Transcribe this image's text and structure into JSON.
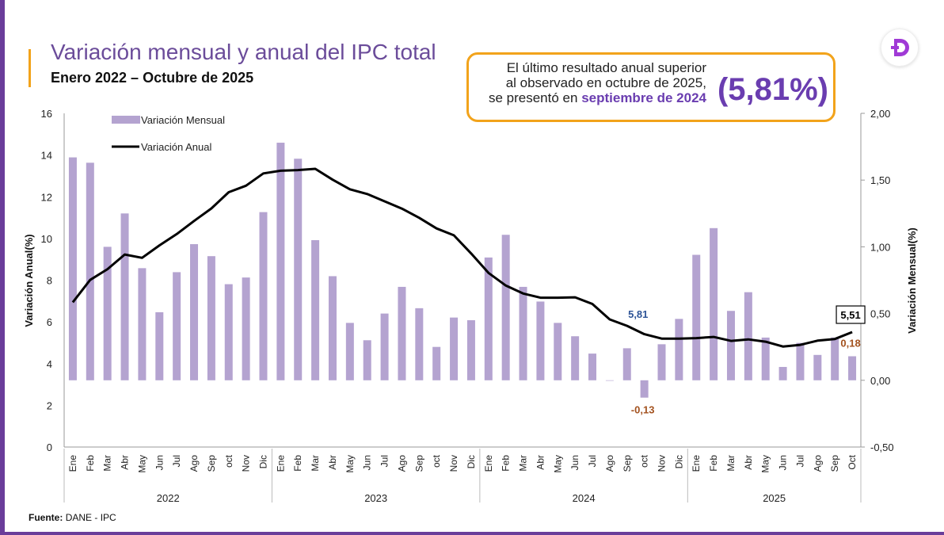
{
  "header": {
    "title": "Variación mensual y anual del IPC total",
    "subtitle": "Enero 2022 – Octubre de 2025"
  },
  "callout": {
    "text_line1": "El último resultado anual superior",
    "text_line2": "al observado en octubre de 2025,",
    "text_line3": "se presentó en",
    "text_em": "septiembre de 2024",
    "big_value": "(5,81%)"
  },
  "source": {
    "label": "Fuente:",
    "value": "DANE - IPC"
  },
  "colors": {
    "bars": "#b4a3d0",
    "line": "#000000",
    "accent": "#f2a31b",
    "brand": "#6a3db0",
    "label_blue": "#2f5597",
    "label_brown": "#a3521f"
  },
  "chart_data": {
    "type": "bar+line",
    "categories": [
      "Ene",
      "Feb",
      "Mar",
      "Abr",
      "May",
      "Jun",
      "Jul",
      "Ago",
      "Sep",
      "oct",
      "Nov",
      "Dic",
      "Ene",
      "Feb",
      "Mar",
      "Abr",
      "May",
      "Jun",
      "Jul",
      "Ago",
      "Sep",
      "oct",
      "Nov",
      "Dic",
      "Ene",
      "Feb",
      "Mar",
      "Abr",
      "May",
      "Jun",
      "Jul",
      "Ago",
      "Sep",
      "oct",
      "Nov",
      "Dic",
      "Ene",
      "Feb",
      "Mar",
      "Abr",
      "May",
      "Jun",
      "Jul",
      "Ago",
      "Sep",
      "Oct"
    ],
    "years": [
      {
        "label": "2022",
        "start": 0,
        "end": 11
      },
      {
        "label": "2023",
        "start": 12,
        "end": 23
      },
      {
        "label": "2024",
        "start": 24,
        "end": 35
      },
      {
        "label": "2025",
        "start": 36,
        "end": 45
      }
    ],
    "series": [
      {
        "name": "Variación Mensual",
        "axis": "right",
        "type": "bar",
        "values": [
          1.67,
          1.63,
          1.0,
          1.25,
          0.84,
          0.51,
          0.81,
          1.02,
          0.93,
          0.72,
          0.77,
          1.26,
          1.78,
          1.66,
          1.05,
          0.78,
          0.43,
          0.3,
          0.5,
          0.7,
          0.54,
          0.25,
          0.47,
          0.45,
          0.92,
          1.09,
          0.7,
          0.59,
          0.43,
          0.33,
          0.2,
          0.0,
          0.24,
          -0.13,
          0.27,
          0.46,
          0.94,
          1.14,
          0.52,
          0.66,
          0.32,
          0.1,
          0.28,
          0.19,
          0.32,
          0.18
        ]
      },
      {
        "name": "Variación Anual",
        "axis": "left",
        "type": "line",
        "values": [
          6.94,
          8.01,
          8.53,
          9.23,
          9.07,
          9.67,
          10.21,
          10.84,
          11.44,
          12.22,
          12.53,
          13.12,
          13.25,
          13.28,
          13.34,
          12.82,
          12.36,
          12.13,
          11.78,
          11.43,
          10.99,
          10.48,
          10.15,
          9.28,
          8.35,
          7.74,
          7.36,
          7.16,
          7.16,
          7.18,
          6.86,
          6.12,
          5.81,
          5.41,
          5.2,
          5.2,
          5.22,
          5.28,
          5.09,
          5.16,
          5.05,
          4.82,
          4.9,
          5.1,
          5.18,
          5.51
        ]
      }
    ],
    "left_axis": {
      "label": "Variación Anual(%)",
      "min": 0,
      "max": 16,
      "ticks": [
        "0",
        "2",
        "4",
        "6",
        "8",
        "10",
        "12",
        "14",
        "16"
      ]
    },
    "right_axis": {
      "label": "Variación Mensual(%)",
      "min": -0.5,
      "max": 2.0,
      "ticks": [
        "-0,50",
        "0,00",
        "0,50",
        "1,00",
        "1,50",
        "2,00"
      ]
    },
    "legend": {
      "placement": "top-left",
      "items": [
        "Variación Mensual",
        "Variación Anual"
      ]
    },
    "annotations": [
      {
        "text": "5,81",
        "series": "Variación Anual",
        "index": 32
      },
      {
        "text": "5,51",
        "series": "Variación Anual",
        "index": 45,
        "boxed": true
      },
      {
        "text": "0,18",
        "series": "Variación Mensual",
        "index": 45
      },
      {
        "text": "-0,13",
        "series": "Variación Mensual",
        "index": 33
      }
    ],
    "grid": false
  }
}
